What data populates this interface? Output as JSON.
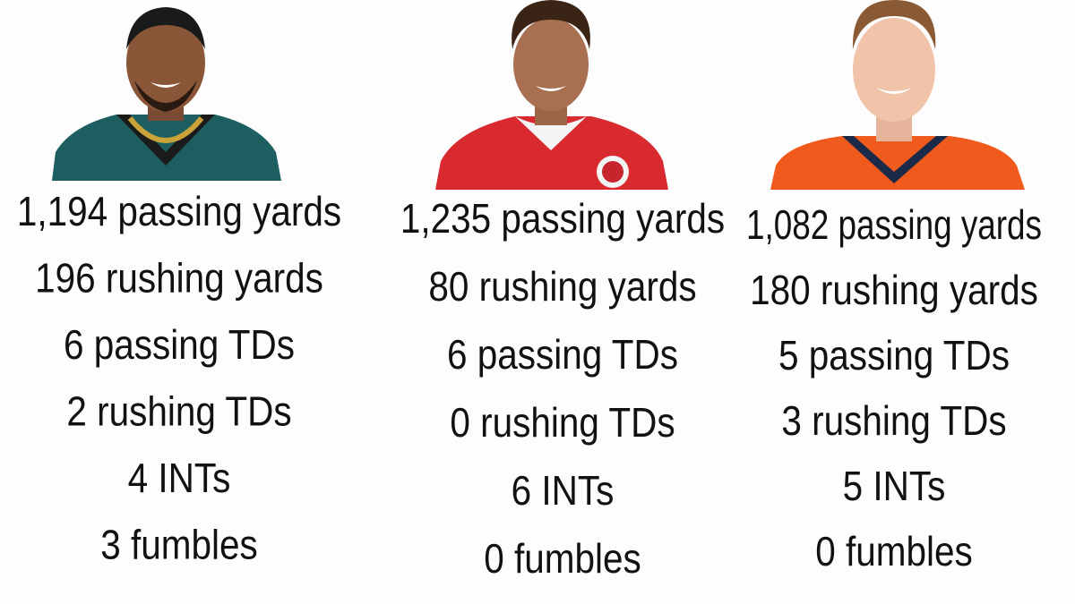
{
  "columns": [
    {
      "stats": [
        "1,194 passing yards",
        "196 rushing yards",
        "6 passing TDs",
        "2 rushing TDs",
        "4 INTs",
        "3 fumbles"
      ]
    },
    {
      "stats": [
        "1,235 passing yards",
        "80 rushing yards",
        "6 passing TDs",
        "0 rushing TDs",
        "6 INTs",
        "0 fumbles"
      ]
    },
    {
      "stats": [
        "1,082 passing yards",
        "180 rushing yards",
        "5 passing TDs",
        "3 rushing TDs",
        "5 INTs",
        "0 fumbles"
      ]
    }
  ]
}
